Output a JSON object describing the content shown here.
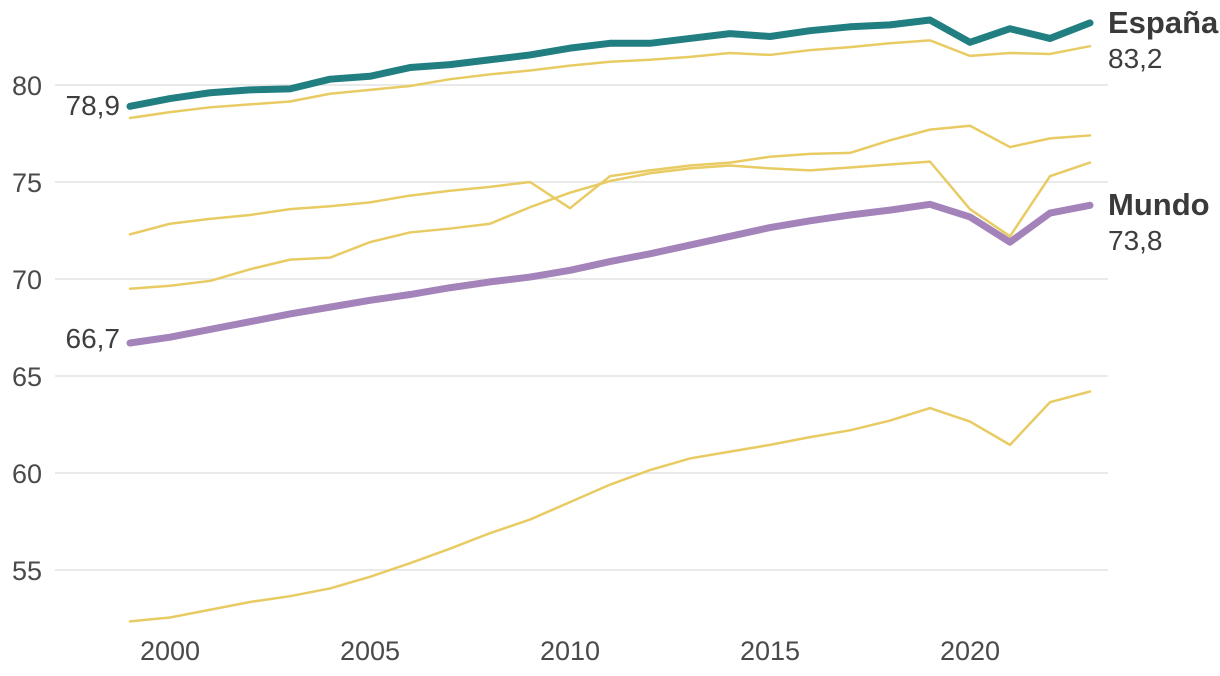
{
  "chart_data": {
    "type": "line",
    "title": "",
    "x_label": "",
    "y_label": "",
    "x": [
      1999,
      2000,
      2001,
      2002,
      2003,
      2004,
      2005,
      2006,
      2007,
      2008,
      2009,
      2010,
      2011,
      2012,
      2013,
      2014,
      2015,
      2016,
      2017,
      2018,
      2019,
      2020,
      2021,
      2022,
      2023
    ],
    "series": [
      {
        "id": "mundo",
        "label": "Mundo",
        "color": "#a383ba",
        "width": 7,
        "values": [
          66.7,
          67.0,
          67.4,
          67.8,
          68.2,
          68.55,
          68.9,
          69.2,
          69.55,
          69.85,
          70.1,
          70.45,
          70.9,
          71.3,
          71.75,
          72.2,
          72.65,
          73.0,
          73.3,
          73.55,
          73.85,
          73.2,
          71.9,
          73.4,
          73.8
        ]
      },
      {
        "id": "context-1",
        "label": "",
        "color": "#e8cb63",
        "width": 2.5,
        "values": [
          78.3,
          78.6,
          78.85,
          79.0,
          79.15,
          79.55,
          79.75,
          79.95,
          80.3,
          80.55,
          80.75,
          81.0,
          81.2,
          81.3,
          81.45,
          81.65,
          81.55,
          81.8,
          81.95,
          82.15,
          82.3,
          81.5,
          81.65,
          81.6,
          82.0
        ]
      },
      {
        "id": "context-2",
        "label": "",
        "color": "#e8cb63",
        "width": 2.5,
        "values": [
          72.3,
          72.85,
          73.1,
          73.3,
          73.6,
          73.75,
          73.95,
          74.3,
          74.55,
          74.75,
          75.0,
          73.65,
          75.3,
          75.6,
          75.85,
          76.0,
          76.3,
          76.45,
          76.5,
          77.15,
          77.7,
          77.9,
          76.8,
          77.25,
          77.4
        ]
      },
      {
        "id": "context-3",
        "label": "",
        "color": "#e8cb63",
        "width": 2.5,
        "values": [
          69.5,
          69.65,
          69.9,
          70.5,
          71.0,
          71.1,
          71.9,
          72.4,
          72.6,
          72.85,
          73.7,
          74.45,
          75.05,
          75.45,
          75.7,
          75.85,
          75.7,
          75.6,
          75.75,
          75.9,
          76.05,
          73.6,
          72.2,
          75.3,
          76.0
        ]
      },
      {
        "id": "context-4",
        "label": "",
        "color": "#e8cb63",
        "width": 2.5,
        "values": [
          52.35,
          52.55,
          52.95,
          53.35,
          53.65,
          54.05,
          54.65,
          55.35,
          56.1,
          56.9,
          57.6,
          58.5,
          59.4,
          60.15,
          60.75,
          61.1,
          61.45,
          61.85,
          62.2,
          62.7,
          63.35,
          62.65,
          61.45,
          63.65,
          64.2
        ]
      },
      {
        "id": "espana",
        "label": "España",
        "color": "#217e81",
        "width": 7,
        "values": [
          78.9,
          79.3,
          79.6,
          79.75,
          79.8,
          80.3,
          80.45,
          80.9,
          81.05,
          81.3,
          81.55,
          81.9,
          82.15,
          82.15,
          82.4,
          82.65,
          82.5,
          82.8,
          83.0,
          83.1,
          83.35,
          82.2,
          82.9,
          82.4,
          83.2
        ]
      }
    ],
    "y_axis": {
      "ticks": [
        55,
        60,
        65,
        70,
        75,
        80
      ],
      "labels": [
        "55",
        "60",
        "65",
        "70",
        "75",
        "80"
      ],
      "range": [
        51.5,
        84
      ]
    },
    "x_axis": {
      "ticks": [
        2000,
        2005,
        2010,
        2015,
        2020
      ],
      "labels": [
        "2000",
        "2005",
        "2010",
        "2015",
        "2020"
      ],
      "range": [
        1999,
        2023
      ]
    },
    "grid": "horizontal",
    "legend_position": "direct-right",
    "annotations": {
      "spain_start": "78,9",
      "world_start": "66,7"
    },
    "end_labels": {
      "spain": {
        "name": "España",
        "value": "83,2"
      },
      "world": {
        "name": "Mundo",
        "value": "73,8"
      }
    },
    "colors": {
      "spain_line": "#217e81",
      "world_line": "#a383ba",
      "context_line": "#e8cb63",
      "gridline": "#e3e3e3",
      "tick_text": "#4a4a4a",
      "label_text": "#3a3a3a",
      "background": "#ffffff"
    }
  }
}
